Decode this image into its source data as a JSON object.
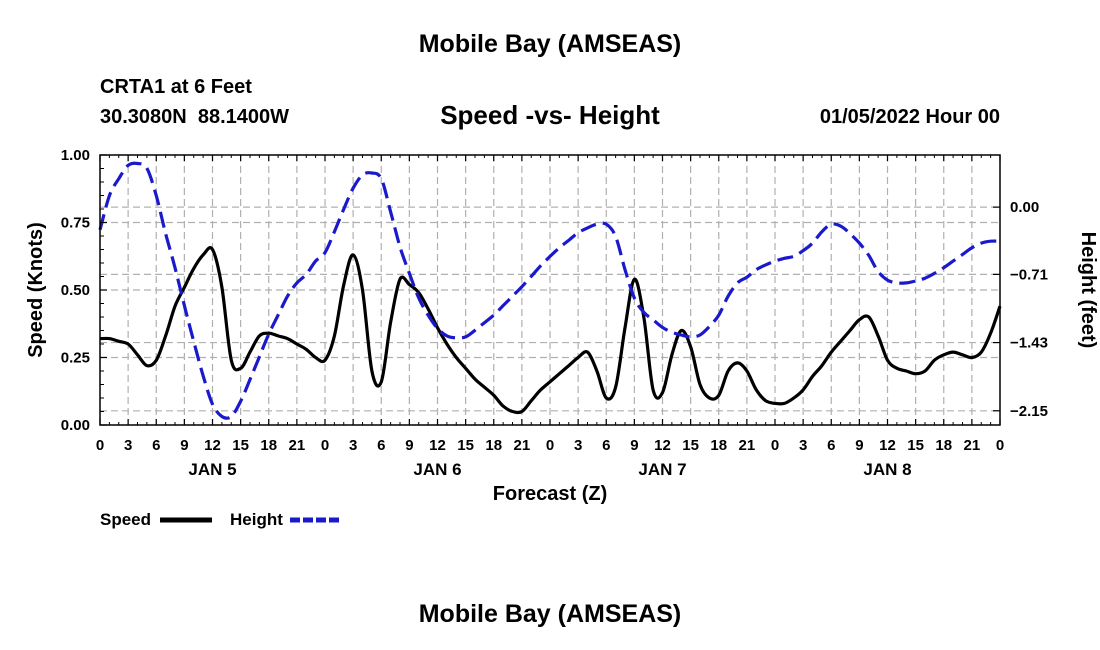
{
  "header": {
    "region_title": "Mobile Bay (AMSEAS)",
    "station": "CRTA1 at 6 Feet",
    "coords": "30.3080N  88.1400W",
    "chart_title": "Speed -vs- Height",
    "datetime": "01/05/2022 Hour 00"
  },
  "footer": {
    "region_title": "Mobile Bay (AMSEAS)"
  },
  "chart_data": {
    "type": "line",
    "title": "Speed -vs- Height",
    "xlabel": "Forecast (Z)",
    "ylabel_left": "Speed (Knots)",
    "ylabel_right": "Height (feet)",
    "x_range_hours": [
      0,
      96
    ],
    "x_ticks": [
      {
        "hour": 0,
        "label": "0"
      },
      {
        "hour": 3,
        "label": "3"
      },
      {
        "hour": 6,
        "label": "6"
      },
      {
        "hour": 9,
        "label": "9"
      },
      {
        "hour": 12,
        "label": "12"
      },
      {
        "hour": 15,
        "label": "15"
      },
      {
        "hour": 18,
        "label": "18"
      },
      {
        "hour": 21,
        "label": "21"
      },
      {
        "hour": 24,
        "label": "0"
      },
      {
        "hour": 27,
        "label": "3"
      },
      {
        "hour": 30,
        "label": "6"
      },
      {
        "hour": 33,
        "label": "9"
      },
      {
        "hour": 36,
        "label": "12"
      },
      {
        "hour": 39,
        "label": "15"
      },
      {
        "hour": 42,
        "label": "18"
      },
      {
        "hour": 45,
        "label": "21"
      },
      {
        "hour": 48,
        "label": "0"
      },
      {
        "hour": 51,
        "label": "3"
      },
      {
        "hour": 54,
        "label": "6"
      },
      {
        "hour": 57,
        "label": "9"
      },
      {
        "hour": 60,
        "label": "12"
      },
      {
        "hour": 63,
        "label": "15"
      },
      {
        "hour": 66,
        "label": "18"
      },
      {
        "hour": 69,
        "label": "21"
      },
      {
        "hour": 72,
        "label": "0"
      },
      {
        "hour": 75,
        "label": "3"
      },
      {
        "hour": 78,
        "label": "6"
      },
      {
        "hour": 81,
        "label": "9"
      },
      {
        "hour": 84,
        "label": "12"
      },
      {
        "hour": 87,
        "label": "15"
      },
      {
        "hour": 90,
        "label": "18"
      },
      {
        "hour": 93,
        "label": "21"
      },
      {
        "hour": 96,
        "label": "0"
      }
    ],
    "day_labels": [
      {
        "hour": 12,
        "label": "JAN 5"
      },
      {
        "hour": 36,
        "label": "JAN 6"
      },
      {
        "hour": 60,
        "label": "JAN 7"
      },
      {
        "hour": 84,
        "label": "JAN 8"
      }
    ],
    "left_axis": {
      "range": [
        0,
        1
      ],
      "ticks": [
        0,
        0.25,
        0.5,
        0.75,
        1.0
      ],
      "labels": [
        "0.00",
        "0.25",
        "0.50",
        "0.75",
        "1.00"
      ]
    },
    "right_axis": {
      "range": [
        -2.3,
        0.55
      ],
      "ticks": [
        0.0,
        -0.71,
        -1.43,
        -2.15
      ],
      "labels": [
        "0.00",
        "−0.71",
        "−1.43",
        "−2.15"
      ]
    },
    "grid": true,
    "colors": {
      "speed": "#000000",
      "height": "#1a1acc",
      "grid": "#b0b0b0"
    },
    "series": [
      {
        "name": "Speed",
        "axis": "left",
        "style": "solid",
        "x": [
          0,
          1,
          2,
          3,
          4,
          5,
          6,
          7,
          8,
          9,
          10,
          11,
          12,
          13,
          14,
          15,
          16,
          17,
          18,
          19,
          20,
          21,
          22,
          23,
          24,
          25,
          26,
          27,
          28,
          29,
          30,
          31,
          32,
          33,
          34,
          35,
          36,
          37,
          38,
          39,
          40,
          41,
          42,
          43,
          44,
          45,
          46,
          47,
          48,
          49,
          50,
          51,
          52,
          53,
          54,
          55,
          56,
          57,
          58,
          59,
          60,
          61,
          62,
          63,
          64,
          65,
          66,
          67,
          68,
          69,
          70,
          71,
          72,
          73,
          74,
          75,
          76,
          77,
          78,
          79,
          80,
          81,
          82,
          83,
          84,
          85,
          86,
          87,
          88,
          89,
          90,
          91,
          92,
          93,
          94,
          95,
          96
        ],
        "y": [
          0.32,
          0.32,
          0.31,
          0.3,
          0.26,
          0.22,
          0.24,
          0.33,
          0.44,
          0.51,
          0.58,
          0.63,
          0.65,
          0.51,
          0.24,
          0.21,
          0.27,
          0.33,
          0.34,
          0.33,
          0.32,
          0.3,
          0.28,
          0.25,
          0.24,
          0.33,
          0.52,
          0.63,
          0.5,
          0.2,
          0.16,
          0.38,
          0.54,
          0.52,
          0.49,
          0.43,
          0.36,
          0.3,
          0.25,
          0.21,
          0.17,
          0.14,
          0.11,
          0.07,
          0.05,
          0.05,
          0.09,
          0.13,
          0.16,
          0.19,
          0.22,
          0.25,
          0.27,
          0.2,
          0.1,
          0.14,
          0.36,
          0.54,
          0.4,
          0.13,
          0.12,
          0.26,
          0.35,
          0.29,
          0.15,
          0.1,
          0.11,
          0.2,
          0.23,
          0.2,
          0.13,
          0.09,
          0.08,
          0.08,
          0.1,
          0.13,
          0.18,
          0.22,
          0.27,
          0.31,
          0.35,
          0.39,
          0.4,
          0.33,
          0.24,
          0.21,
          0.2,
          0.19,
          0.2,
          0.24,
          0.26,
          0.27,
          0.26,
          0.25,
          0.27,
          0.34,
          0.44
        ]
      },
      {
        "name": "Height",
        "axis": "right",
        "style": "dashed",
        "x": [
          0,
          1,
          2,
          3,
          4,
          5,
          6,
          7,
          8,
          9,
          10,
          11,
          12,
          13,
          14,
          15,
          16,
          17,
          18,
          19,
          20,
          21,
          22,
          23,
          24,
          25,
          26,
          27,
          28,
          29,
          30,
          31,
          32,
          33,
          34,
          35,
          36,
          37,
          38,
          39,
          40,
          41,
          42,
          43,
          44,
          45,
          46,
          47,
          48,
          49,
          50,
          51,
          52,
          53,
          54,
          55,
          56,
          57,
          58,
          59,
          60,
          61,
          62,
          63,
          64,
          65,
          66,
          67,
          68,
          69,
          70,
          71,
          72,
          73,
          74,
          75,
          76,
          77,
          78,
          79,
          80,
          81,
          82,
          83,
          84,
          85,
          86,
          87,
          88,
          89,
          90,
          91,
          92,
          93,
          94,
          95,
          96
        ],
        "y": [
          -0.24,
          0.12,
          0.3,
          0.44,
          0.46,
          0.41,
          0.12,
          -0.28,
          -0.64,
          -1.04,
          -1.42,
          -1.78,
          -2.08,
          -2.21,
          -2.21,
          -2.05,
          -1.82,
          -1.58,
          -1.34,
          -1.14,
          -0.94,
          -0.8,
          -0.71,
          -0.57,
          -0.48,
          -0.26,
          -0.02,
          0.2,
          0.34,
          0.36,
          0.3,
          -0.05,
          -0.42,
          -0.7,
          -0.96,
          -1.14,
          -1.28,
          -1.36,
          -1.38,
          -1.37,
          -1.3,
          -1.22,
          -1.14,
          -1.04,
          -0.94,
          -0.84,
          -0.73,
          -0.62,
          -0.52,
          -0.43,
          -0.35,
          -0.27,
          -0.22,
          -0.18,
          -0.18,
          -0.31,
          -0.66,
          -0.96,
          -1.11,
          -1.19,
          -1.27,
          -1.32,
          -1.35,
          -1.37,
          -1.35,
          -1.26,
          -1.14,
          -0.94,
          -0.8,
          -0.74,
          -0.66,
          -0.61,
          -0.57,
          -0.54,
          -0.52,
          -0.46,
          -0.38,
          -0.26,
          -0.18,
          -0.2,
          -0.28,
          -0.38,
          -0.51,
          -0.68,
          -0.77,
          -0.8,
          -0.8,
          -0.78,
          -0.75,
          -0.7,
          -0.64,
          -0.57,
          -0.5,
          -0.43,
          -0.38,
          -0.36,
          -0.36
        ]
      }
    ]
  }
}
